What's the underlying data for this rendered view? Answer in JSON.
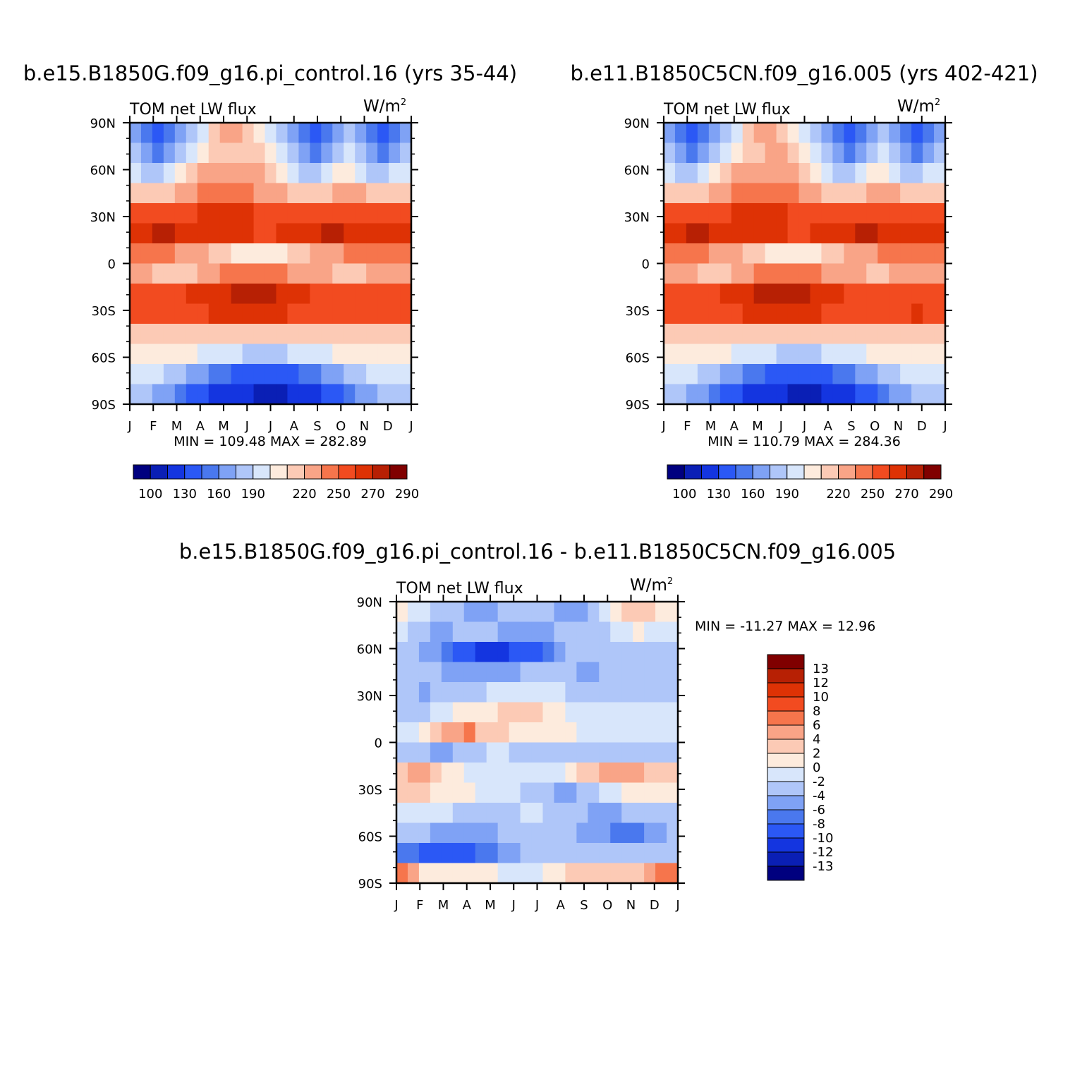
{
  "colors": {
    "abs_scale": [
      "#00007f",
      "#0a1fb5",
      "#1435e0",
      "#2b58f5",
      "#4a78ee",
      "#7fa2f5",
      "#afc6f9",
      "#d8e6fb",
      "#fdebdd",
      "#fccab5",
      "#f9a487",
      "#f6754c",
      "#f24b20",
      "#de3205",
      "#b72004",
      "#800000"
    ],
    "diff_scale": [
      "#00007f",
      "#0a1fb5",
      "#1435e0",
      "#2b58f5",
      "#4a78ee",
      "#7fa2f5",
      "#afc6f9",
      "#d8e6fb",
      "#fdebdd",
      "#fccab5",
      "#f9a487",
      "#f6754c",
      "#f24b20",
      "#de3205",
      "#b72004",
      "#800000"
    ]
  },
  "chart_data": [
    {
      "type": "heatmap",
      "title": "b.e15.B1850G.f09_g16.pi_control.16 (yrs 35-44)",
      "subtitle_left": "TOM  net  LW  flux",
      "units_base": "W/m",
      "units_sup": "2",
      "stats": "MIN  =  109.48  MAX  =  282.89",
      "min": 109.48,
      "max": 282.89,
      "x": [
        "J",
        "F",
        "M",
        "A",
        "M",
        "J",
        "J",
        "A",
        "S",
        "O",
        "N",
        "D",
        "J"
      ],
      "y": [
        "90N",
        "60N",
        "30N",
        "0",
        "30S",
        "60S",
        "90S"
      ],
      "ylim": [
        -90,
        90
      ],
      "levels": [
        100,
        110,
        130,
        140,
        160,
        170,
        190,
        200,
        220,
        230,
        250,
        260,
        270,
        280,
        290
      ],
      "colorbar_labels": [
        "100",
        "130",
        "160",
        "190",
        "220",
        "250",
        "270",
        "290"
      ],
      "values": [
        [
          5,
          4,
          3,
          4,
          5,
          6,
          7,
          9,
          10,
          10,
          9,
          8,
          7,
          6,
          5,
          4,
          3,
          4,
          5,
          6,
          5,
          4,
          3,
          4,
          5
        ],
        [
          6,
          5,
          4,
          5,
          6,
          7,
          8,
          9,
          9,
          9,
          9,
          9,
          8,
          7,
          6,
          5,
          4,
          5,
          6,
          7,
          6,
          5,
          4,
          5,
          6
        ],
        [
          7,
          6,
          6,
          7,
          8,
          9,
          10,
          10,
          10,
          10,
          10,
          10,
          9,
          8,
          7,
          6,
          6,
          7,
          8,
          8,
          7,
          6,
          6,
          7,
          7
        ],
        [
          9,
          9,
          9,
          9,
          10,
          10,
          11,
          11,
          11,
          11,
          11,
          10,
          10,
          10,
          9,
          9,
          9,
          9,
          10,
          10,
          10,
          9,
          9,
          9,
          9
        ],
        [
          12,
          12,
          12,
          12,
          12,
          12,
          13,
          13,
          13,
          13,
          13,
          12,
          12,
          12,
          12,
          12,
          12,
          12,
          12,
          12,
          12,
          12,
          12,
          12,
          12
        ],
        [
          13,
          13,
          14,
          14,
          13,
          13,
          13,
          13,
          13,
          13,
          13,
          12,
          12,
          13,
          13,
          13,
          13,
          14,
          14,
          13,
          13,
          13,
          13,
          13,
          13
        ],
        [
          11,
          11,
          11,
          11,
          10,
          10,
          10,
          9,
          9,
          8,
          8,
          8,
          8,
          8,
          9,
          9,
          10,
          10,
          10,
          11,
          11,
          11,
          11,
          11,
          11
        ],
        [
          10,
          10,
          9,
          9,
          9,
          9,
          10,
          10,
          11,
          11,
          11,
          11,
          11,
          11,
          10,
          10,
          10,
          10,
          9,
          9,
          9,
          10,
          10,
          10,
          10
        ],
        [
          12,
          12,
          12,
          12,
          12,
          13,
          13,
          13,
          13,
          14,
          14,
          14,
          14,
          13,
          13,
          13,
          12,
          12,
          12,
          12,
          12,
          12,
          12,
          12,
          12
        ],
        [
          12,
          12,
          12,
          12,
          12,
          12,
          12,
          13,
          13,
          13,
          13,
          13,
          13,
          13,
          12,
          12,
          12,
          12,
          12,
          12,
          12,
          12,
          12,
          12,
          12
        ],
        [
          9,
          9,
          9,
          9,
          9,
          9,
          9,
          9,
          9,
          9,
          9,
          9,
          9,
          9,
          9,
          9,
          9,
          9,
          9,
          9,
          9,
          9,
          9,
          9,
          9
        ],
        [
          8,
          8,
          8,
          8,
          8,
          8,
          7,
          7,
          7,
          7,
          6,
          6,
          6,
          6,
          7,
          7,
          7,
          7,
          8,
          8,
          8,
          8,
          8,
          8,
          8
        ],
        [
          7,
          7,
          7,
          6,
          6,
          5,
          5,
          4,
          4,
          3,
          3,
          3,
          3,
          3,
          3,
          4,
          4,
          5,
          5,
          6,
          6,
          7,
          7,
          7,
          7
        ],
        [
          6,
          6,
          5,
          5,
          4,
          3,
          3,
          2,
          2,
          2,
          2,
          1,
          1,
          1,
          2,
          2,
          2,
          3,
          3,
          4,
          5,
          5,
          6,
          6,
          6
        ]
      ]
    },
    {
      "type": "heatmap",
      "title": "b.e11.B1850C5CN.f09_g16.005 (yrs 402-421)",
      "subtitle_left": "TOM  net  LW  flux",
      "units_base": "W/m",
      "units_sup": "2",
      "stats": "MIN  =  110.79  MAX  =  284.36",
      "min": 110.79,
      "max": 284.36,
      "x": [
        "J",
        "F",
        "M",
        "A",
        "M",
        "J",
        "J",
        "A",
        "S",
        "O",
        "N",
        "D",
        "J"
      ],
      "y": [
        "90N",
        "60N",
        "30N",
        "0",
        "30S",
        "60S",
        "90S"
      ],
      "ylim": [
        -90,
        90
      ],
      "levels": [
        100,
        110,
        130,
        140,
        160,
        170,
        190,
        200,
        220,
        230,
        250,
        260,
        270,
        280,
        290
      ],
      "colorbar_labels": [
        "100",
        "130",
        "160",
        "190",
        "220",
        "250",
        "270",
        "290"
      ],
      "values": [
        [
          5,
          4,
          3,
          4,
          5,
          6,
          7,
          9,
          10,
          10,
          9,
          8,
          7,
          6,
          5,
          4,
          3,
          4,
          5,
          6,
          5,
          4,
          3,
          4,
          5
        ],
        [
          6,
          5,
          4,
          5,
          6,
          7,
          8,
          9,
          9,
          10,
          10,
          9,
          8,
          7,
          6,
          5,
          4,
          5,
          6,
          7,
          6,
          5,
          4,
          5,
          6
        ],
        [
          7,
          6,
          6,
          7,
          8,
          9,
          10,
          10,
          10,
          10,
          10,
          10,
          9,
          8,
          7,
          6,
          6,
          7,
          8,
          8,
          7,
          6,
          6,
          7,
          7
        ],
        [
          9,
          9,
          9,
          9,
          10,
          10,
          11,
          11,
          11,
          11,
          11,
          11,
          10,
          10,
          9,
          9,
          9,
          9,
          10,
          10,
          10,
          9,
          9,
          9,
          9
        ],
        [
          12,
          12,
          12,
          12,
          12,
          12,
          13,
          13,
          13,
          13,
          13,
          12,
          12,
          12,
          12,
          12,
          12,
          12,
          12,
          12,
          12,
          12,
          12,
          12,
          12
        ],
        [
          13,
          13,
          14,
          14,
          13,
          13,
          13,
          13,
          13,
          13,
          13,
          12,
          12,
          13,
          13,
          13,
          13,
          14,
          14,
          13,
          13,
          13,
          13,
          13,
          13
        ],
        [
          11,
          11,
          11,
          11,
          10,
          10,
          10,
          9,
          9,
          8,
          8,
          8,
          8,
          8,
          9,
          9,
          10,
          10,
          10,
          11,
          11,
          11,
          11,
          11,
          11
        ],
        [
          10,
          10,
          10,
          9,
          9,
          9,
          10,
          10,
          11,
          11,
          11,
          11,
          11,
          11,
          10,
          10,
          10,
          10,
          9,
          9,
          10,
          10,
          10,
          10,
          10
        ],
        [
          12,
          12,
          12,
          12,
          12,
          13,
          13,
          13,
          14,
          14,
          14,
          14,
          14,
          13,
          13,
          13,
          12,
          12,
          12,
          12,
          12,
          12,
          12,
          12,
          12
        ],
        [
          12,
          12,
          12,
          12,
          12,
          12,
          12,
          13,
          13,
          13,
          13,
          13,
          13,
          13,
          12,
          12,
          12,
          12,
          12,
          12,
          12,
          12,
          13,
          12,
          12
        ],
        [
          9,
          9,
          9,
          9,
          9,
          9,
          9,
          9,
          9,
          9,
          9,
          9,
          9,
          9,
          9,
          9,
          9,
          9,
          9,
          9,
          9,
          9,
          9,
          9,
          9
        ],
        [
          8,
          8,
          8,
          8,
          8,
          8,
          7,
          7,
          7,
          7,
          6,
          6,
          6,
          6,
          7,
          7,
          7,
          7,
          8,
          8,
          8,
          8,
          8,
          8,
          8
        ],
        [
          7,
          7,
          7,
          6,
          6,
          5,
          5,
          4,
          4,
          3,
          3,
          3,
          3,
          3,
          3,
          4,
          4,
          5,
          5,
          6,
          6,
          7,
          7,
          7,
          7
        ],
        [
          6,
          6,
          5,
          5,
          4,
          3,
          3,
          2,
          2,
          2,
          2,
          1,
          1,
          1,
          2,
          2,
          2,
          3,
          3,
          4,
          5,
          5,
          6,
          6,
          6
        ]
      ]
    },
    {
      "type": "heatmap",
      "title": "b.e15.B1850G.f09_g16.pi_control.16 - b.e11.B1850C5CN.f09_g16.005",
      "subtitle_left": "TOM  net  LW  flux",
      "units_base": "W/m",
      "units_sup": "2",
      "stats": "MIN  = -11.27  MAX  =   12.96",
      "min": -11.27,
      "max": 12.96,
      "x": [
        "J",
        "F",
        "M",
        "A",
        "M",
        "J",
        "J",
        "A",
        "S",
        "O",
        "N",
        "D",
        "J"
      ],
      "y": [
        "90N",
        "60N",
        "30N",
        "0",
        "30S",
        "60S",
        "90S"
      ],
      "ylim": [
        -90,
        90
      ],
      "levels": [
        -13,
        -12,
        -10,
        -8,
        -6,
        -4,
        -2,
        0,
        2,
        4,
        6,
        8,
        10,
        12,
        13
      ],
      "colorbar_labels": [
        "13",
        "12",
        "10",
        "8",
        "6",
        "4",
        "2",
        "0",
        "-2",
        "-4",
        "-6",
        "-8",
        "-10",
        "-12",
        "-13"
      ],
      "values": [
        [
          8,
          7,
          7,
          6,
          6,
          6,
          5,
          5,
          5,
          6,
          6,
          6,
          6,
          6,
          5,
          5,
          5,
          6,
          7,
          8,
          9,
          9,
          9,
          8,
          8
        ],
        [
          7,
          6,
          6,
          5,
          5,
          6,
          6,
          6,
          6,
          5,
          5,
          5,
          5,
          5,
          6,
          6,
          6,
          6,
          6,
          7,
          7,
          8,
          7,
          7,
          7
        ],
        [
          6,
          6,
          5,
          5,
          4,
          3,
          3,
          2,
          2,
          2,
          3,
          3,
          3,
          4,
          5,
          6,
          6,
          6,
          6,
          6,
          6,
          6,
          6,
          6,
          6
        ],
        [
          6,
          6,
          6,
          6,
          5,
          5,
          5,
          5,
          5,
          5,
          5,
          6,
          6,
          6,
          6,
          6,
          5,
          5,
          6,
          6,
          6,
          6,
          6,
          6,
          6
        ],
        [
          6,
          6,
          5,
          6,
          6,
          6,
          6,
          6,
          7,
          7,
          7,
          7,
          7,
          7,
          7,
          6,
          6,
          6,
          6,
          6,
          6,
          6,
          6,
          6,
          6
        ],
        [
          6,
          6,
          6,
          7,
          7,
          8,
          8,
          8,
          8,
          9,
          9,
          9,
          9,
          8,
          8,
          7,
          7,
          7,
          7,
          7,
          7,
          7,
          7,
          7,
          7
        ],
        [
          7,
          7,
          8,
          9,
          10,
          10,
          11,
          9,
          9,
          9,
          8,
          8,
          8,
          8,
          8,
          8,
          7,
          7,
          7,
          7,
          7,
          7,
          7,
          7,
          7
        ],
        [
          6,
          6,
          6,
          5,
          5,
          6,
          6,
          6,
          7,
          7,
          6,
          6,
          6,
          6,
          6,
          6,
          6,
          6,
          6,
          6,
          6,
          6,
          6,
          6,
          6
        ],
        [
          9,
          10,
          10,
          9,
          8,
          8,
          7,
          7,
          7,
          7,
          7,
          7,
          7,
          7,
          7,
          8,
          9,
          9,
          10,
          10,
          10,
          10,
          9,
          9,
          9
        ],
        [
          9,
          9,
          9,
          8,
          8,
          8,
          8,
          7,
          7,
          7,
          7,
          6,
          6,
          6,
          5,
          5,
          6,
          6,
          7,
          7,
          8,
          8,
          8,
          8,
          8
        ],
        [
          7,
          7,
          7,
          7,
          7,
          6,
          6,
          6,
          6,
          6,
          6,
          7,
          7,
          6,
          6,
          6,
          6,
          5,
          5,
          5,
          6,
          6,
          6,
          6,
          6
        ],
        [
          6,
          6,
          6,
          5,
          5,
          5,
          5,
          5,
          5,
          6,
          6,
          6,
          6,
          6,
          6,
          6,
          5,
          5,
          5,
          4,
          4,
          4,
          5,
          5,
          6
        ],
        [
          4,
          4,
          3,
          3,
          3,
          3,
          3,
          4,
          4,
          5,
          5,
          6,
          6,
          6,
          6,
          6,
          6,
          6,
          6,
          6,
          6,
          6,
          6,
          6,
          6
        ],
        [
          11,
          10,
          8,
          8,
          8,
          8,
          8,
          8,
          8,
          7,
          7,
          7,
          7,
          8,
          8,
          9,
          9,
          9,
          9,
          9,
          9,
          9,
          10,
          11,
          11
        ]
      ]
    }
  ]
}
